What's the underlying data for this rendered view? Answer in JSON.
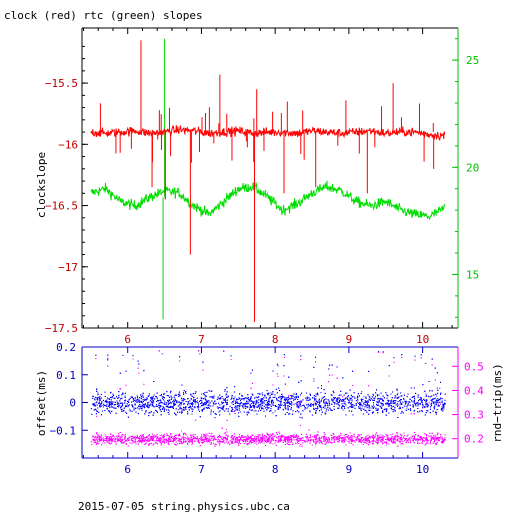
{
  "title": "clock (red) rtc (green) slopes",
  "footer": "2015-07-05 string.physics.ubc.ca",
  "colors": {
    "clock": "#ff0000",
    "rtc": "#00dd00",
    "offset": "#0000ff",
    "roundtrip": "#ff00ff",
    "right_axis_top": "#00c000",
    "right_axis_bottom": "#ff00ff",
    "left_axis_top": "#c00000",
    "left_axis_bottom": "#0000c0"
  },
  "chart_data": [
    {
      "type": "line",
      "title": "clock (red) rtc (green) slopes",
      "x_ticks": [
        "6",
        "7",
        "8",
        "9",
        "10"
      ],
      "xlim": [
        5.38,
        10.48
      ],
      "ylabel": "clockslope",
      "ylim": [
        -17.5,
        -15.05
      ],
      "y_ticks": [
        "-15.5",
        "-16",
        "-16.5",
        "-17",
        "-17.5"
      ],
      "y2lim": [
        12.5,
        26.5
      ],
      "y2_ticks": [
        "15",
        "20",
        "25"
      ],
      "grid": false,
      "series": [
        {
          "axis": "left",
          "color": "#ff0000",
          "x": [
            5.5,
            5.7,
            5.9,
            6.1,
            6.3,
            6.5,
            6.7,
            6.9,
            7.1,
            7.3,
            7.5,
            7.7,
            7.9,
            8.1,
            8.3,
            8.5,
            8.7,
            8.9,
            9.1,
            9.3,
            9.5,
            9.7,
            9.9,
            10.1,
            10.3
          ],
          "y": [
            -15.9,
            -15.91,
            -15.9,
            -15.89,
            -15.91,
            -15.9,
            -15.88,
            -15.89,
            -15.91,
            -15.9,
            -15.89,
            -15.91,
            -15.9,
            -15.9,
            -15.91,
            -15.89,
            -15.9,
            -15.91,
            -15.9,
            -15.89,
            -15.91,
            -15.9,
            -15.9,
            -15.92,
            -15.93
          ],
          "spikes": [
            {
              "x": 6.18,
              "y": -15.15
            },
            {
              "x": 6.33,
              "y": -16.35
            },
            {
              "x": 6.51,
              "y": -16.45
            },
            {
              "x": 6.85,
              "y": -16.9
            },
            {
              "x": 7.25,
              "y": -15.43
            },
            {
              "x": 7.72,
              "y": -17.45
            },
            {
              "x": 7.75,
              "y": -15.55
            },
            {
              "x": 8.12,
              "y": -16.4
            },
            {
              "x": 8.55,
              "y": -16.35
            },
            {
              "x": 9.25,
              "y": -16.4
            },
            {
              "x": 9.6,
              "y": -15.5
            },
            {
              "x": 10.15,
              "y": -16.2
            }
          ]
        },
        {
          "axis": "right",
          "color": "#00dd00",
          "x": [
            5.5,
            5.7,
            5.9,
            6.1,
            6.3,
            6.5,
            6.7,
            6.9,
            7.1,
            7.3,
            7.5,
            7.7,
            7.9,
            8.1,
            8.3,
            8.5,
            8.7,
            8.9,
            9.1,
            9.3,
            9.5,
            9.7,
            9.9,
            10.1,
            10.3
          ],
          "y": [
            18.8,
            19.0,
            18.4,
            18.2,
            18.6,
            18.9,
            18.8,
            18.2,
            17.8,
            18.4,
            19.0,
            19.1,
            18.6,
            18.0,
            18.3,
            18.8,
            19.1,
            18.9,
            18.4,
            18.2,
            18.4,
            18.0,
            17.8,
            17.7,
            18.1
          ],
          "spikes": [
            {
              "x": 6.48,
              "y": 12.9
            },
            {
              "x": 6.5,
              "y": 26.0
            }
          ]
        }
      ]
    },
    {
      "type": "scatter",
      "x_ticks": [
        "6",
        "7",
        "8",
        "9",
        "10"
      ],
      "xlim": [
        5.38,
        10.48
      ],
      "ylabel": "offset(ms)",
      "ylim": [
        -0.2,
        0.2
      ],
      "y_ticks": [
        "0.2",
        "0.1",
        "0",
        "-0.1"
      ],
      "y2label": "rnd−trip(ms)",
      "y2lim": [
        0.12,
        0.58
      ],
      "y2_ticks": [
        "0.5",
        "0.4",
        "0.3",
        "0.2"
      ],
      "series": [
        {
          "axis": "left",
          "color": "#0000ff",
          "center": 0.0,
          "spread": 0.04,
          "outlier_max": 0.19,
          "outlier_min": -0.08
        },
        {
          "axis": "right",
          "color": "#ff00ff",
          "center": 0.2,
          "spread": 0.022,
          "outlier_max": 0.57
        }
      ]
    }
  ]
}
